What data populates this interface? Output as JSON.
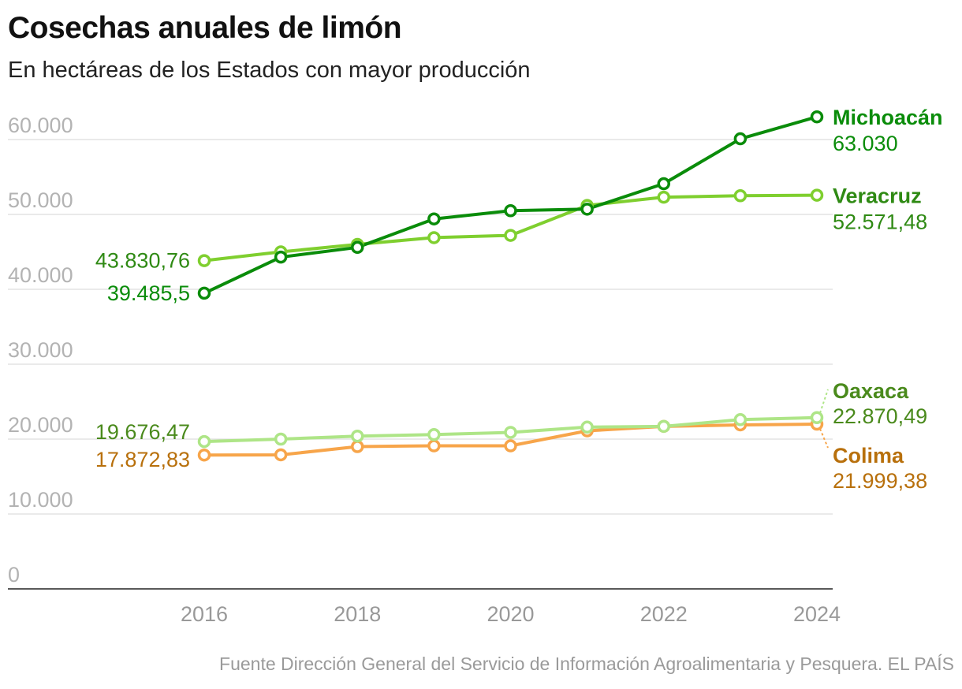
{
  "title": "Cosechas anuales de limón",
  "subtitle": "En hectáreas de los Estados con mayor producción",
  "source": "Fuente Dirección General del Servicio de Información Agroalimentaria y Pesquera. EL PAÍS",
  "chart_data": {
    "type": "line",
    "title": "Cosechas anuales de limón",
    "subtitle": "En hectáreas de los Estados con mayor producción",
    "xlabel": "",
    "ylabel": "",
    "x": [
      2016,
      2017,
      2018,
      2019,
      2020,
      2021,
      2022,
      2023,
      2024
    ],
    "ylim": [
      0,
      66000
    ],
    "yticks": [
      0,
      10000,
      20000,
      30000,
      40000,
      50000,
      60000
    ],
    "ytick_labels": [
      "0",
      "10.000",
      "20.000",
      "30.000",
      "40.000",
      "50.000",
      "60.000"
    ],
    "xticks": [
      2016,
      2018,
      2020,
      2022,
      2024
    ],
    "xtick_labels": [
      "2016",
      "2018",
      "2020",
      "2022",
      "2024"
    ],
    "grid": true,
    "series": [
      {
        "name": "Veracruz",
        "color": "#7fcf2f",
        "label_color": "#2f8a14",
        "values": [
          43830.76,
          45000,
          46000,
          46900,
          47200,
          51200,
          52300,
          52500,
          52571.48
        ],
        "start_label": "43.830,76",
        "end_label": "52.571,48"
      },
      {
        "name": "Michoacán",
        "color": "#0a8c0a",
        "label_color": "#0a8c0a",
        "values": [
          39485.5,
          44300,
          45600,
          49400,
          50500,
          50700,
          54100,
          60100,
          63030
        ],
        "start_label": "39.485,5",
        "end_label": "63.030"
      },
      {
        "name": "Colima",
        "color": "#f7a54a",
        "label_color": "#b8700c",
        "values": [
          17872.83,
          17900,
          19000,
          19100,
          19100,
          21100,
          21700,
          21900,
          21999.38
        ],
        "start_label": "17.872,83",
        "end_label": "21.999,38"
      },
      {
        "name": "Oaxaca",
        "color": "#aee587",
        "label_color": "#4a8a1c",
        "values": [
          19676.47,
          20000,
          20400,
          20600,
          20900,
          21600,
          21700,
          22600,
          22870.49
        ],
        "start_label": "19.676,47",
        "end_label": "22.870,49"
      }
    ]
  }
}
